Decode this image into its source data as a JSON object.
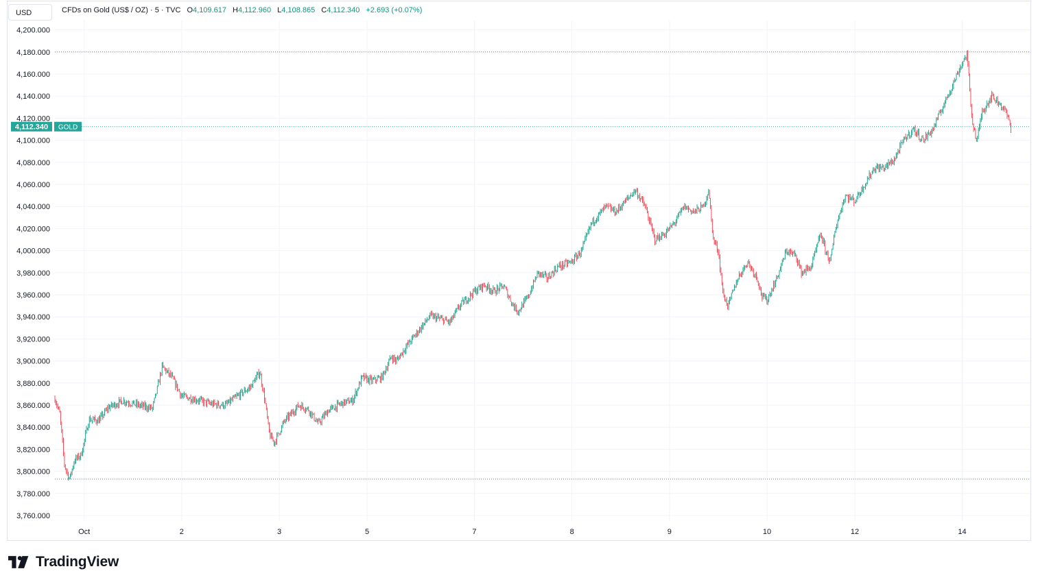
{
  "currency_button": "USD",
  "legend": {
    "symbol_title": "CFDs on Gold (US$ / OZ) · 5 · TVC",
    "open_label": "O",
    "open": "4,109.617",
    "high_label": "H",
    "high": "4,112.960",
    "low_label": "L",
    "low": "4,108.865",
    "close_label": "C",
    "close": "4,112.340",
    "change": "+2.693 (+0.07%)"
  },
  "price_tag": {
    "value": "4,112.340",
    "symbol": "GOLD"
  },
  "brand": "TradingView",
  "colors": {
    "up": "#089981",
    "down": "#f23645",
    "accent": "#26a69a"
  },
  "chart_data": {
    "type": "candlestick",
    "ylim": [
      3750,
      4210
    ],
    "y_ticks": [
      "4,200.000",
      "4,180.000",
      "4,160.000",
      "4,140.000",
      "4,120.000",
      "4,100.000",
      "4,080.000",
      "4,060.000",
      "4,040.000",
      "4,020.000",
      "4,000.000",
      "3,980.000",
      "3,960.000",
      "3,940.000",
      "3,920.000",
      "3,900.000",
      "3,880.000",
      "3,860.000",
      "3,840.000",
      "3,820.000",
      "3,800.000",
      "3,780.000",
      "3,760.000"
    ],
    "x_ticks": [
      "Oct",
      "2",
      "3",
      "5",
      "7",
      "8",
      "9",
      "10",
      "12",
      "14"
    ],
    "x_tick_pos": [
      0.03,
      0.13,
      0.23,
      0.32,
      0.43,
      0.53,
      0.63,
      0.73,
      0.82,
      0.93
    ],
    "high_line": 4180,
    "low_line": 3793,
    "last_price": 4112.34,
    "series": [
      {
        "t": 0.0,
        "p": 3866
      },
      {
        "t": 0.005,
        "p": 3852
      },
      {
        "t": 0.01,
        "p": 3805
      },
      {
        "t": 0.015,
        "p": 3793
      },
      {
        "t": 0.02,
        "p": 3810
      },
      {
        "t": 0.027,
        "p": 3815
      },
      {
        "t": 0.035,
        "p": 3847
      },
      {
        "t": 0.045,
        "p": 3846
      },
      {
        "t": 0.055,
        "p": 3858
      },
      {
        "t": 0.07,
        "p": 3864
      },
      {
        "t": 0.085,
        "p": 3860
      },
      {
        "t": 0.1,
        "p": 3857
      },
      {
        "t": 0.105,
        "p": 3875
      },
      {
        "t": 0.11,
        "p": 3895
      },
      {
        "t": 0.12,
        "p": 3885
      },
      {
        "t": 0.13,
        "p": 3868
      },
      {
        "t": 0.145,
        "p": 3865
      },
      {
        "t": 0.16,
        "p": 3861
      },
      {
        "t": 0.175,
        "p": 3860
      },
      {
        "t": 0.19,
        "p": 3870
      },
      {
        "t": 0.2,
        "p": 3876
      },
      {
        "t": 0.21,
        "p": 3890
      },
      {
        "t": 0.215,
        "p": 3866
      },
      {
        "t": 0.22,
        "p": 3833
      },
      {
        "t": 0.225,
        "p": 3826
      },
      {
        "t": 0.235,
        "p": 3845
      },
      {
        "t": 0.25,
        "p": 3860
      },
      {
        "t": 0.26,
        "p": 3856
      },
      {
        "t": 0.27,
        "p": 3843
      },
      {
        "t": 0.28,
        "p": 3855
      },
      {
        "t": 0.295,
        "p": 3862
      },
      {
        "t": 0.305,
        "p": 3864
      },
      {
        "t": 0.315,
        "p": 3885
      },
      {
        "t": 0.325,
        "p": 3882
      },
      {
        "t": 0.335,
        "p": 3885
      },
      {
        "t": 0.345,
        "p": 3904
      },
      {
        "t": 0.35,
        "p": 3900
      },
      {
        "t": 0.36,
        "p": 3913
      },
      {
        "t": 0.375,
        "p": 3930
      },
      {
        "t": 0.385,
        "p": 3941
      },
      {
        "t": 0.395,
        "p": 3938
      },
      {
        "t": 0.405,
        "p": 3935
      },
      {
        "t": 0.415,
        "p": 3950
      },
      {
        "t": 0.43,
        "p": 3963
      },
      {
        "t": 0.44,
        "p": 3969
      },
      {
        "t": 0.45,
        "p": 3963
      },
      {
        "t": 0.46,
        "p": 3968
      },
      {
        "t": 0.47,
        "p": 3950
      },
      {
        "t": 0.475,
        "p": 3945
      },
      {
        "t": 0.485,
        "p": 3958
      },
      {
        "t": 0.495,
        "p": 3980
      },
      {
        "t": 0.505,
        "p": 3975
      },
      {
        "t": 0.515,
        "p": 3985
      },
      {
        "t": 0.53,
        "p": 3990
      },
      {
        "t": 0.54,
        "p": 4000
      },
      {
        "t": 0.55,
        "p": 4025
      },
      {
        "t": 0.565,
        "p": 4040
      },
      {
        "t": 0.575,
        "p": 4035
      },
      {
        "t": 0.585,
        "p": 4045
      },
      {
        "t": 0.595,
        "p": 4055
      },
      {
        "t": 0.605,
        "p": 4040
      },
      {
        "t": 0.615,
        "p": 4010
      },
      {
        "t": 0.625,
        "p": 4015
      },
      {
        "t": 0.635,
        "p": 4025
      },
      {
        "t": 0.645,
        "p": 4040
      },
      {
        "t": 0.655,
        "p": 4035
      },
      {
        "t": 0.665,
        "p": 4040
      },
      {
        "t": 0.67,
        "p": 4055
      },
      {
        "t": 0.675,
        "p": 4010
      },
      {
        "t": 0.68,
        "p": 4000
      },
      {
        "t": 0.685,
        "p": 3960
      },
      {
        "t": 0.69,
        "p": 3950
      },
      {
        "t": 0.7,
        "p": 3975
      },
      {
        "t": 0.71,
        "p": 3990
      },
      {
        "t": 0.72,
        "p": 3975
      },
      {
        "t": 0.725,
        "p": 3958
      },
      {
        "t": 0.73,
        "p": 3955
      },
      {
        "t": 0.74,
        "p": 3975
      },
      {
        "t": 0.75,
        "p": 4000
      },
      {
        "t": 0.76,
        "p": 3995
      },
      {
        "t": 0.765,
        "p": 3980
      },
      {
        "t": 0.775,
        "p": 3985
      },
      {
        "t": 0.785,
        "p": 4015
      },
      {
        "t": 0.79,
        "p": 4000
      },
      {
        "t": 0.795,
        "p": 3990
      },
      {
        "t": 0.8,
        "p": 4020
      },
      {
        "t": 0.81,
        "p": 4050
      },
      {
        "t": 0.82,
        "p": 4045
      },
      {
        "t": 0.83,
        "p": 4060
      },
      {
        "t": 0.84,
        "p": 4075
      },
      {
        "t": 0.85,
        "p": 4075
      },
      {
        "t": 0.86,
        "p": 4082
      },
      {
        "t": 0.87,
        "p": 4100
      },
      {
        "t": 0.88,
        "p": 4110
      },
      {
        "t": 0.89,
        "p": 4100
      },
      {
        "t": 0.9,
        "p": 4110
      },
      {
        "t": 0.91,
        "p": 4130
      },
      {
        "t": 0.92,
        "p": 4150
      },
      {
        "t": 0.93,
        "p": 4170
      },
      {
        "t": 0.935,
        "p": 4178
      },
      {
        "t": 0.94,
        "p": 4120
      },
      {
        "t": 0.945,
        "p": 4098
      },
      {
        "t": 0.95,
        "p": 4125
      },
      {
        "t": 0.96,
        "p": 4140
      },
      {
        "t": 0.97,
        "p": 4132
      },
      {
        "t": 0.975,
        "p": 4125
      },
      {
        "t": 0.98,
        "p": 4112
      }
    ]
  }
}
